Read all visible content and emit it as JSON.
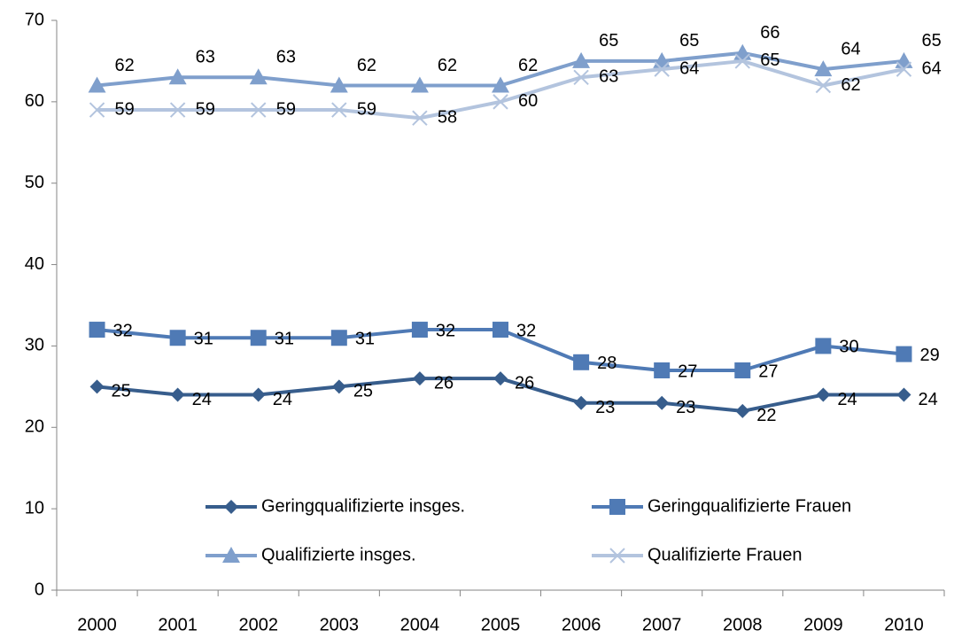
{
  "chart_data": {
    "type": "line",
    "categories": [
      "2000",
      "2001",
      "2002",
      "2003",
      "2004",
      "2005",
      "2006",
      "2007",
      "2008",
      "2009",
      "2010"
    ],
    "series": [
      {
        "name": "Geringqualifizierte insges.",
        "color": "#375d8c",
        "marker": "diamond",
        "values": [
          25,
          24,
          24,
          25,
          26,
          26,
          23,
          23,
          22,
          24,
          24
        ]
      },
      {
        "name": "Geringqualifizierte Frauen",
        "color": "#4f7ab5",
        "marker": "square",
        "values": [
          32,
          31,
          31,
          31,
          32,
          32,
          28,
          27,
          27,
          30,
          29
        ]
      },
      {
        "name": "Qualifizierte insges.",
        "color": "#7f9fcc",
        "marker": "triangle",
        "values": [
          62,
          63,
          63,
          62,
          62,
          62,
          65,
          65,
          66,
          64,
          65
        ]
      },
      {
        "name": "Qualifizierte Frauen",
        "color": "#b3c4de",
        "marker": "x",
        "values": [
          59,
          59,
          59,
          59,
          58,
          60,
          63,
          64,
          65,
          62,
          64
        ]
      }
    ],
    "ylim": [
      0,
      70
    ],
    "yticks": [
      0,
      10,
      20,
      30,
      40,
      50,
      60,
      70
    ]
  }
}
